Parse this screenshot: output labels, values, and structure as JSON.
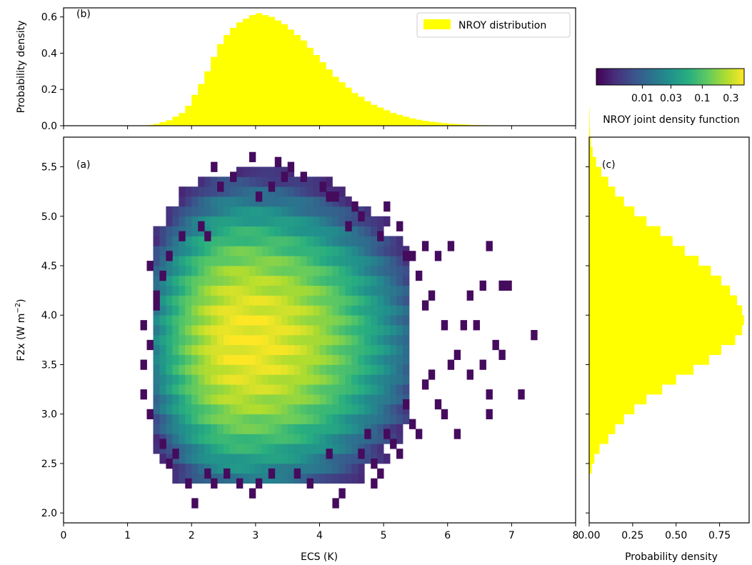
{
  "chart_data": [
    {
      "id": "b",
      "type": "bar",
      "panel_label": "(b)",
      "ylabel": "Probability density",
      "ylim": [
        0,
        0.65
      ],
      "yticks": [
        0.0,
        0.2,
        0.4,
        0.6
      ],
      "ytick_labels": [
        "0.0",
        "0.2",
        "0.4",
        "0.6"
      ],
      "xlim": [
        0,
        8
      ],
      "xticks": [
        0,
        1,
        2,
        3,
        4,
        5,
        6,
        7,
        8
      ],
      "legend": {
        "label": "NROY distribution",
        "color": "#ffff00",
        "position": "upper right"
      },
      "bar_color": "#ffff00",
      "bins": {
        "start": 1.2,
        "width": 0.1
      },
      "values": [
        0.002,
        0.004,
        0.01,
        0.02,
        0.03,
        0.05,
        0.07,
        0.11,
        0.17,
        0.23,
        0.3,
        0.38,
        0.45,
        0.5,
        0.54,
        0.57,
        0.59,
        0.61,
        0.62,
        0.61,
        0.6,
        0.58,
        0.56,
        0.53,
        0.5,
        0.47,
        0.43,
        0.39,
        0.35,
        0.31,
        0.27,
        0.24,
        0.21,
        0.18,
        0.16,
        0.135,
        0.115,
        0.1,
        0.085,
        0.07,
        0.06,
        0.05,
        0.04,
        0.033,
        0.027,
        0.022,
        0.018,
        0.014,
        0.011,
        0.009,
        0.007,
        0.005,
        0.004,
        0.003,
        0.002,
        0.002,
        0.001,
        0.001
      ]
    },
    {
      "id": "a",
      "type": "heatmap",
      "panel_label": "(a)",
      "xlabel": "ECS (K)",
      "ylabel": "F2x (W m",
      "ylabel_sup": "−2",
      "ylabel_close": ")",
      "xlim": [
        0,
        8
      ],
      "ylim": [
        1.9,
        5.8
      ],
      "xticks": [
        0,
        1,
        2,
        3,
        4,
        5,
        6,
        7,
        8
      ],
      "xtick_labels": [
        "0",
        "1",
        "2",
        "3",
        "4",
        "5",
        "6",
        "7",
        "8"
      ],
      "yticks": [
        2.0,
        2.5,
        3.0,
        3.5,
        4.0,
        4.5,
        5.0,
        5.5
      ],
      "ytick_labels": [
        "2.0",
        "2.5",
        "3.0",
        "3.5",
        "4.0",
        "4.5",
        "5.0",
        "5.5"
      ],
      "bins": {
        "x_width": 0.1,
        "y_width": 0.1
      },
      "peak": {
        "ecs": 2.8,
        "f2x": 3.75
      },
      "colormap": "viridis",
      "scale": "log",
      "cells": [
        [
          2.3,
          5.45,
          0.002
        ],
        [
          2.9,
          5.55,
          0.002
        ],
        [
          3.3,
          5.5,
          0.002
        ],
        [
          3.5,
          5.45,
          0.002
        ],
        [
          3.4,
          5.35,
          0.002
        ],
        [
          3.7,
          5.35,
          0.002
        ],
        [
          2.6,
          5.35,
          0.002
        ],
        [
          3.2,
          5.25,
          0.002
        ],
        [
          4.0,
          5.25,
          0.002
        ],
        [
          4.2,
          5.15,
          0.002
        ],
        [
          4.1,
          5.15,
          0.002
        ],
        [
          2.4,
          5.25,
          0.002
        ],
        [
          3.0,
          5.15,
          0.002
        ],
        [
          4.5,
          5.05,
          0.002
        ],
        [
          4.6,
          4.95,
          0.002
        ],
        [
          5.0,
          5.05,
          0.002
        ],
        [
          5.2,
          4.85,
          0.002
        ],
        [
          5.6,
          4.65,
          0.002
        ],
        [
          5.8,
          4.55,
          0.002
        ],
        [
          6.0,
          4.65,
          0.002
        ],
        [
          6.6,
          4.65,
          0.002
        ],
        [
          6.3,
          4.15,
          0.002
        ],
        [
          6.5,
          4.25,
          0.002
        ],
        [
          6.8,
          4.25,
          0.002
        ],
        [
          6.9,
          4.25,
          0.002
        ],
        [
          7.3,
          3.75,
          0.002
        ],
        [
          7.1,
          3.15,
          0.002
        ],
        [
          6.7,
          3.65,
          0.002
        ],
        [
          6.5,
          3.45,
          0.002
        ],
        [
          6.6,
          3.15,
          0.002
        ],
        [
          6.6,
          2.95,
          0.002
        ],
        [
          5.9,
          2.95,
          0.002
        ],
        [
          6.1,
          2.75,
          0.002
        ],
        [
          5.4,
          2.85,
          0.002
        ],
        [
          5.2,
          2.55,
          0.002
        ],
        [
          4.8,
          2.45,
          0.002
        ],
        [
          4.9,
          2.35,
          0.002
        ],
        [
          4.8,
          2.25,
          0.002
        ],
        [
          4.3,
          2.15,
          0.002
        ],
        [
          4.2,
          2.05,
          0.002
        ],
        [
          3.8,
          2.25,
          0.002
        ],
        [
          3.0,
          2.25,
          0.002
        ],
        [
          2.9,
          2.15,
          0.002
        ],
        [
          2.0,
          2.05,
          0.002
        ],
        [
          1.9,
          2.25,
          0.002
        ],
        [
          2.3,
          2.25,
          0.002
        ],
        [
          2.5,
          2.35,
          0.002
        ],
        [
          1.6,
          2.45,
          0.002
        ],
        [
          1.2,
          3.15,
          0.002
        ],
        [
          1.3,
          2.95,
          0.002
        ],
        [
          1.2,
          3.85,
          0.002
        ],
        [
          1.4,
          4.15,
          0.002
        ],
        [
          1.3,
          4.45,
          0.002
        ],
        [
          1.6,
          4.55,
          0.002
        ],
        [
          5.3,
          4.55,
          0.002
        ],
        [
          5.5,
          4.35,
          0.002
        ],
        [
          5.7,
          4.15,
          0.002
        ],
        [
          6.2,
          3.85,
          0.002
        ],
        [
          6.4,
          3.85,
          0.002
        ],
        [
          6.8,
          3.55,
          0.002
        ],
        [
          6.0,
          3.45,
          0.002
        ],
        [
          6.3,
          3.35,
          0.002
        ],
        [
          5.7,
          3.35,
          0.002
        ],
        [
          5.8,
          3.05,
          0.002
        ],
        [
          5.6,
          3.25,
          0.002
        ],
        [
          5.3,
          3.05,
          0.002
        ],
        [
          5.1,
          2.65,
          0.002
        ],
        [
          4.7,
          2.75,
          0.002
        ],
        [
          4.6,
          2.55,
          0.002
        ],
        [
          4.1,
          2.55,
          0.002
        ],
        [
          3.6,
          2.35,
          0.002
        ],
        [
          3.2,
          2.35,
          0.002
        ],
        [
          2.7,
          2.25,
          0.002
        ],
        [
          2.2,
          2.35,
          0.002
        ],
        [
          1.7,
          2.55,
          0.002
        ],
        [
          1.5,
          2.65,
          0.002
        ],
        [
          1.2,
          3.45,
          0.002
        ],
        [
          1.3,
          3.65,
          0.002
        ],
        [
          1.4,
          4.05,
          0.002
        ],
        [
          1.5,
          4.35,
          0.002
        ],
        [
          1.8,
          4.75,
          0.002
        ],
        [
          2.1,
          4.85,
          0.002
        ],
        [
          2.2,
          4.75,
          0.002
        ],
        [
          4.4,
          4.85,
          0.002
        ],
        [
          4.9,
          4.75,
          0.002
        ],
        [
          5.4,
          4.55,
          0.002
        ],
        [
          5.6,
          4.05,
          0.002
        ],
        [
          5.9,
          3.85,
          0.002
        ],
        [
          6.1,
          3.55,
          0.002
        ],
        [
          5.5,
          2.75,
          0.002
        ],
        [
          5.0,
          2.75,
          0.002
        ]
      ],
      "colorbar": {
        "label": "NROY joint density function",
        "ticks": [
          0.01,
          0.03,
          0.1,
          0.3
        ],
        "tick_labels": [
          "0.01",
          "0.03",
          "0.1",
          "0.3"
        ],
        "range": [
          0.0017,
          0.5
        ]
      }
    },
    {
      "id": "c",
      "type": "bar",
      "orientation": "horizontal",
      "panel_label": "(c)",
      "xlabel": "Probability density",
      "xlim": [
        0,
        0.92
      ],
      "xticks": [
        0.0,
        0.25,
        0.5,
        0.75
      ],
      "xtick_labels": [
        "0.00",
        "0.25",
        "0.50",
        "0.75"
      ],
      "ylim": [
        1.9,
        5.8
      ],
      "bar_color": "#ffff00",
      "bins": {
        "start": 2.4,
        "width": 0.1
      },
      "values": [
        0.015,
        0.03,
        0.06,
        0.11,
        0.15,
        0.2,
        0.26,
        0.33,
        0.42,
        0.5,
        0.6,
        0.69,
        0.76,
        0.84,
        0.88,
        0.89,
        0.88,
        0.85,
        0.81,
        0.76,
        0.7,
        0.63,
        0.55,
        0.48,
        0.41,
        0.33,
        0.26,
        0.2,
        0.15,
        0.11,
        0.07,
        0.04,
        0.02,
        0.01,
        0.005,
        0.003,
        0.002
      ]
    }
  ]
}
